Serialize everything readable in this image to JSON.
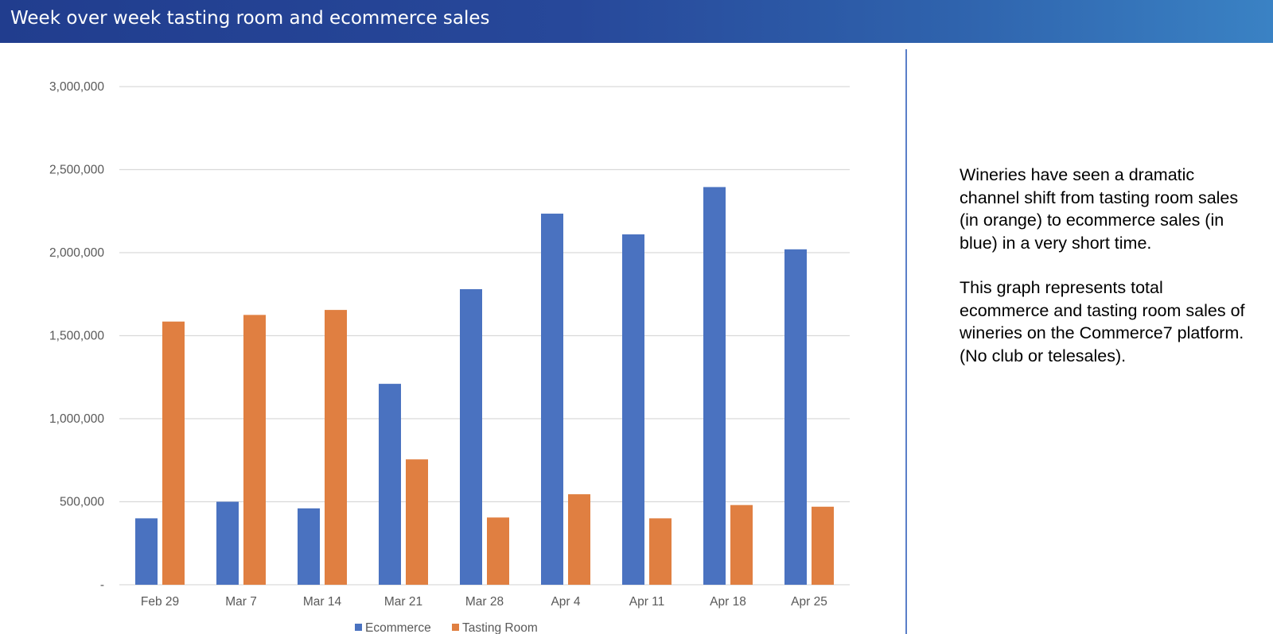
{
  "header": {
    "title": "Week over week tasting room and ecommerce sales"
  },
  "sidebar_note": {
    "paragraph_1": "Wineries have seen a dramatic channel shift from tasting room sales (in orange) to ecommerce sales (in blue) in a very short time.",
    "paragraph_2": "This graph represents total ecommerce and tasting room sales of wineries on the Commerce7 platform. (No club or telesales)."
  },
  "colors": {
    "ecommerce": "#4a72c0",
    "tasting_room": "#e07f41",
    "grid": "#d9d9d9",
    "axis_text": "#595959"
  },
  "chart_data": {
    "type": "bar",
    "title": "",
    "xlabel": "",
    "ylabel": "",
    "categories": [
      "Feb 29",
      "Mar 7",
      "Mar 14",
      "Mar 21",
      "Mar 28",
      "Apr 4",
      "Apr 11",
      "Apr 18",
      "Apr 25"
    ],
    "series": [
      {
        "name": "Ecommerce",
        "color": "#4a72c0",
        "values": [
          400000,
          500000,
          460000,
          1210000,
          1780000,
          2235000,
          2110000,
          2395000,
          2020000
        ]
      },
      {
        "name": "Tasting Room",
        "color": "#e07f41",
        "values": [
          1585000,
          1625000,
          1655000,
          755000,
          405000,
          545000,
          400000,
          480000,
          470000
        ]
      }
    ],
    "ylim": [
      0,
      3000000
    ],
    "yticks": [
      {
        "value": 0,
        "label": "-"
      },
      {
        "value": 500000,
        "label": "500,000"
      },
      {
        "value": 1000000,
        "label": "1,000,000"
      },
      {
        "value": 1500000,
        "label": "1,500,000"
      },
      {
        "value": 2000000,
        "label": "2,000,000"
      },
      {
        "value": 2500000,
        "label": "2,500,000"
      },
      {
        "value": 3000000,
        "label": "3,000,000"
      }
    ],
    "grid": true,
    "legend": "bottom"
  }
}
